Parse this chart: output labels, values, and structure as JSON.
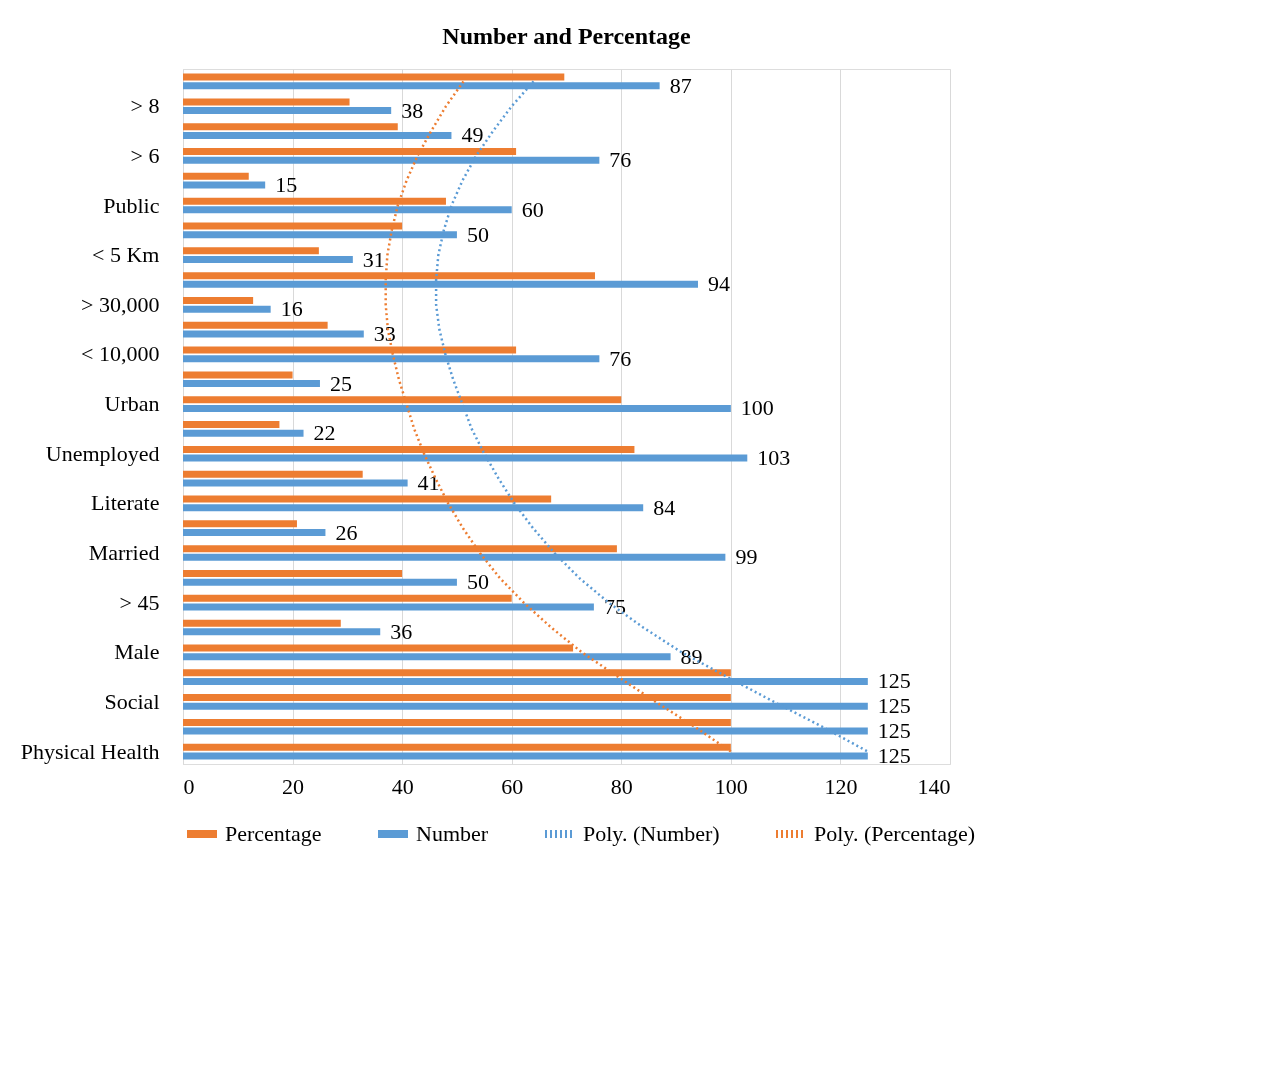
{
  "chart_data": {
    "type": "bar",
    "orientation": "horizontal",
    "title": "Number and Percentage",
    "categories": [
      null,
      "> 8",
      null,
      "> 6",
      null,
      "Public",
      null,
      "< 5 Km",
      null,
      "> 30,000",
      null,
      "< 10,000",
      null,
      "Urban",
      null,
      "Unemployed",
      null,
      "Literate",
      null,
      "Married",
      null,
      "> 45",
      null,
      "Male",
      null,
      "Social",
      null,
      "Physical Health"
    ],
    "series": [
      {
        "name": "Percentage",
        "color": "#ed7d31",
        "values": [
          69.6,
          30.4,
          39.2,
          60.8,
          12,
          48,
          40,
          24.8,
          75.2,
          12.8,
          26.4,
          60.8,
          20,
          80,
          17.6,
          82.4,
          32.8,
          67.2,
          20.8,
          79.2,
          40,
          60,
          28.8,
          71.2,
          100,
          100,
          100,
          100
        ]
      },
      {
        "name": "Number",
        "color": "#5b9bd5",
        "values": [
          87,
          38,
          49,
          76,
          15,
          60,
          50,
          31,
          94,
          16,
          33,
          76,
          25,
          100,
          22,
          103,
          41,
          84,
          26,
          99,
          50,
          75,
          36,
          89,
          125,
          125,
          125,
          125
        ],
        "value_labels": [
          "87",
          "38",
          "49",
          "76",
          "15",
          "60",
          "50",
          "31",
          "94",
          "16",
          "33",
          "76",
          "25",
          "100",
          "22",
          "103",
          "41",
          "84",
          "26",
          "99",
          "50",
          "75",
          "36",
          "89",
          "125",
          "125",
          "125",
          "125"
        ]
      },
      {
        "name": "Poly. (Number)",
        "type": "line",
        "line_style": "dotted",
        "color": "#5b9bd5",
        "values": [
          64,
          60,
          56.6,
          53.5,
          51,
          49,
          47.6,
          46.6,
          46.2,
          46.2,
          46.8,
          47.9,
          49.3,
          51,
          52.7,
          55,
          57.6,
          60.5,
          63.9,
          67.8,
          72.3,
          77.7,
          84,
          91,
          99.4,
          107.9,
          116.7,
          125
        ]
      },
      {
        "name": "Poly. (Percentage)",
        "type": "line",
        "line_style": "dotted",
        "color": "#ed7d31",
        "values": [
          51.2,
          48,
          45.3,
          42.8,
          40.8,
          39.2,
          38.1,
          37.3,
          37,
          37,
          37.4,
          38.3,
          39.4,
          40.8,
          42.2,
          44,
          46.1,
          48.4,
          51.1,
          54.2,
          57.8,
          62.2,
          67.2,
          72.8,
          79.5,
          86.3,
          93.4,
          100
        ]
      }
    ],
    "xlim": [
      0,
      140
    ],
    "xticks": [
      0,
      20,
      40,
      60,
      80,
      100,
      120,
      140
    ],
    "grid": "x",
    "legend": "bottom"
  }
}
